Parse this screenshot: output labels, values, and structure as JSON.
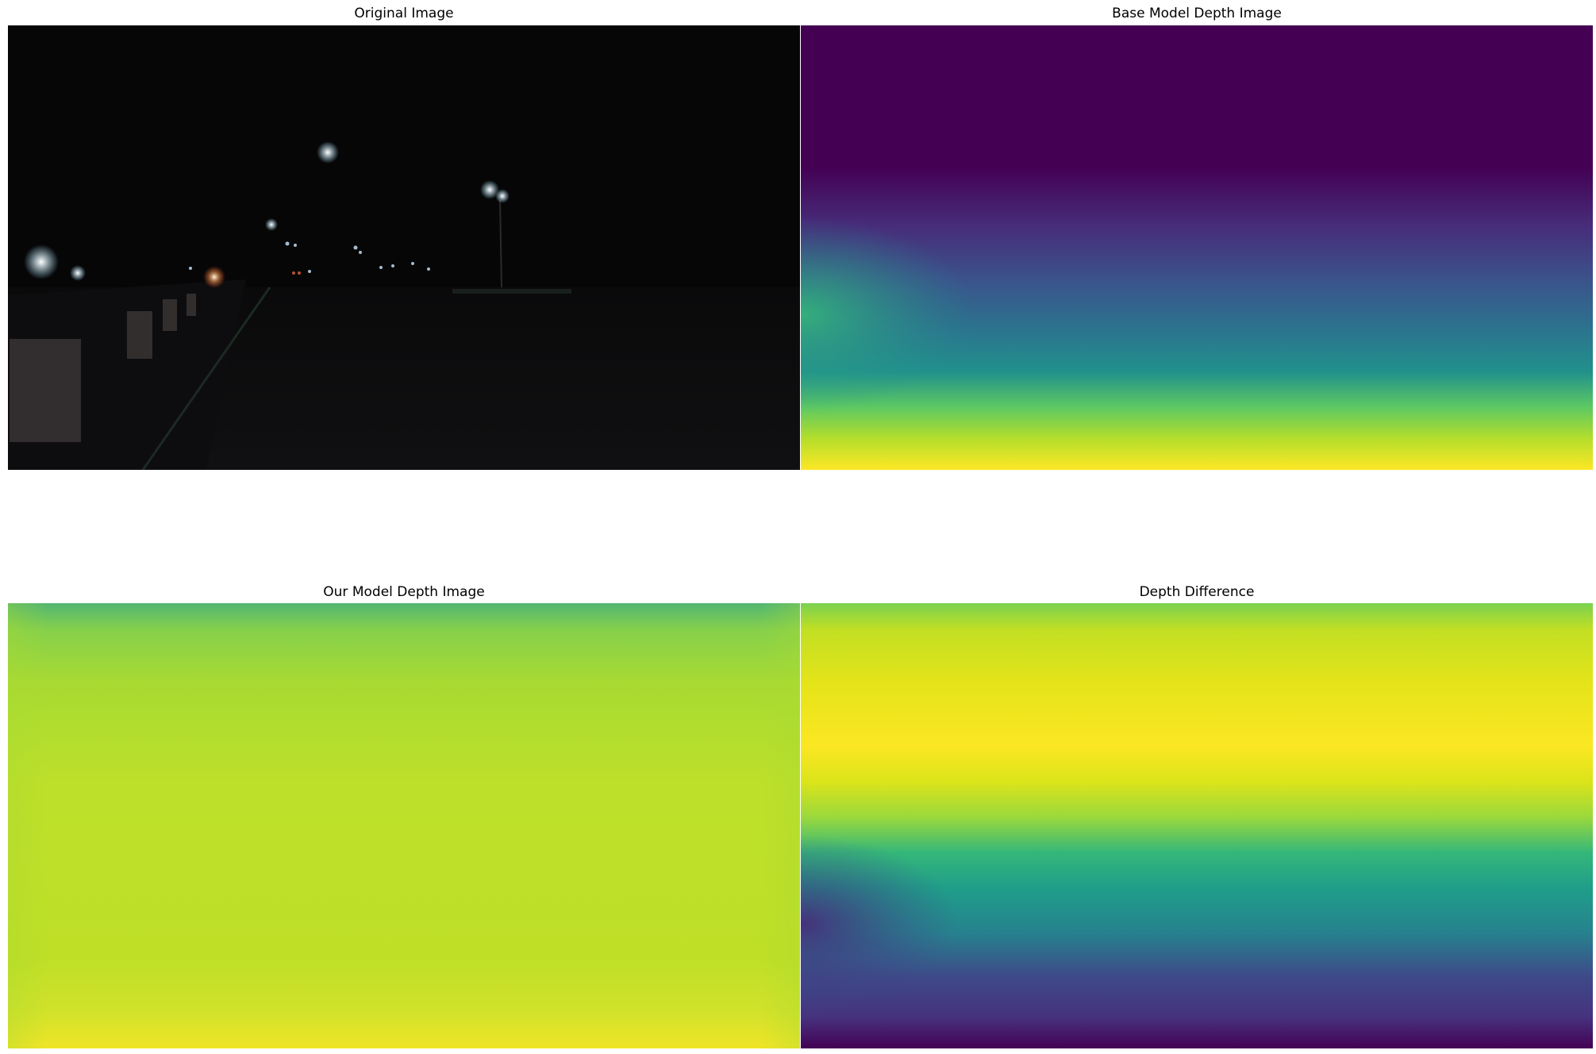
{
  "figure": {
    "panels": [
      {
        "key": "orig",
        "title": "Original Image"
      },
      {
        "key": "base",
        "title": "Base Model Depth Image"
      },
      {
        "key": "ours",
        "title": "Our Model Depth Image"
      },
      {
        "key": "diff",
        "title": "Depth Difference"
      }
    ]
  },
  "colors": {
    "viridis_dark": "#440154",
    "viridis_blue": "#3b528b",
    "viridis_teal": "#21918c",
    "viridis_green": "#5ec962",
    "viridis_yellow": "#fde725",
    "night_black": "#060606"
  }
}
